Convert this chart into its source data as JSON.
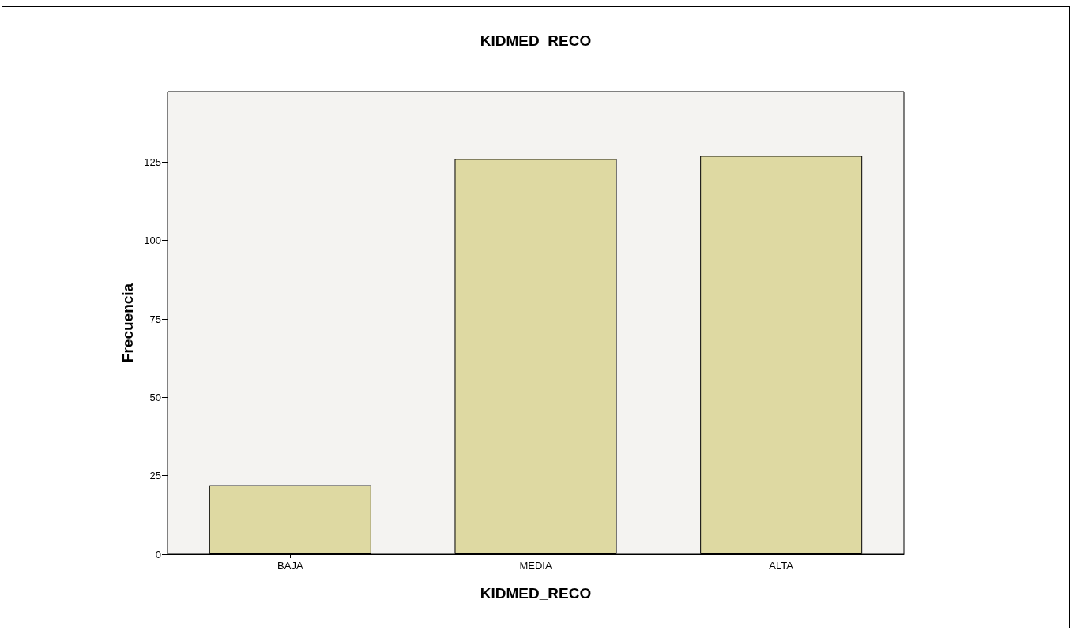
{
  "chart_data": {
    "type": "bar",
    "title": "KIDMED_RECO",
    "xlabel": "KIDMED_RECO",
    "ylabel": "Frecuencia",
    "categories": [
      "BAJA",
      "MEDIA",
      "ALTA"
    ],
    "values": [
      22,
      126,
      127
    ],
    "color": "#ded9a2",
    "ylim": [
      0,
      147.5
    ],
    "yticks": [
      0,
      25,
      50,
      75,
      100,
      125
    ],
    "grid": false
  }
}
